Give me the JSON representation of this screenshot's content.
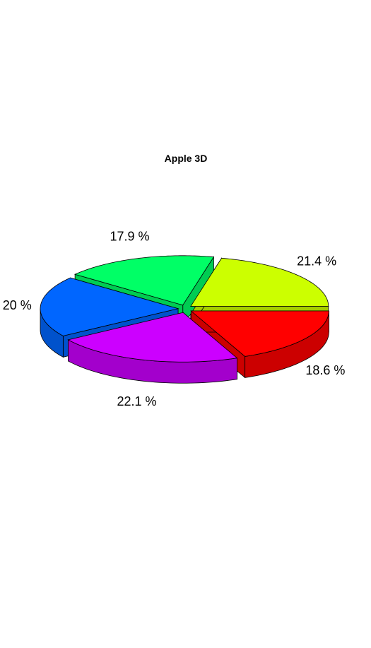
{
  "chart_data": {
    "type": "pie",
    "title": "Apple 3D",
    "three_d": true,
    "exploded": true,
    "slices": [
      {
        "value": 18.6,
        "label": "18.6 %",
        "top_color": "#ff0000",
        "side_color": "#cc0000"
      },
      {
        "value": 22.1,
        "label": "22.1 %",
        "top_color": "#cc00ff",
        "side_color": "#a300cc"
      },
      {
        "value": 20.0,
        "label": "20 %",
        "top_color": "#0066ff",
        "side_color": "#0052cc"
      },
      {
        "value": 17.9,
        "label": "17.9 %",
        "top_color": "#00ff66",
        "side_color": "#00cc52"
      },
      {
        "value": 21.4,
        "label": "21.4 %",
        "top_color": "#ccff00",
        "side_color": "#a3cc00"
      }
    ]
  }
}
